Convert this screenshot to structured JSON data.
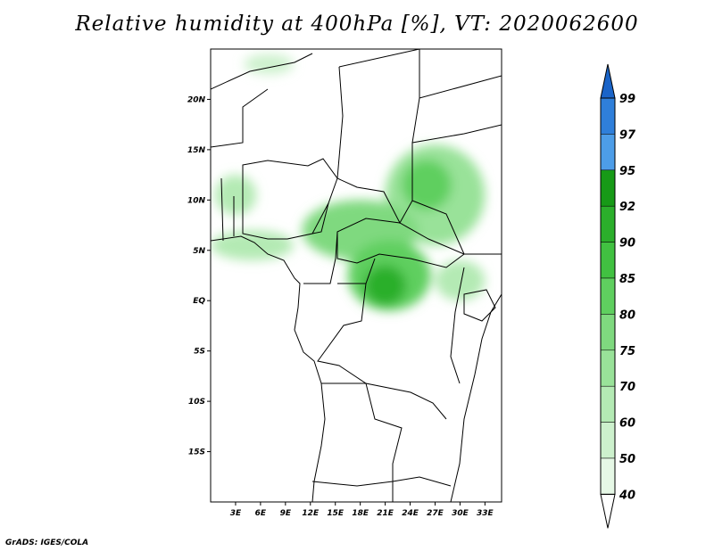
{
  "title": "Relative humidity at 400hPa [%], VT: 2020062600",
  "credit": "GrADS: IGES/COLA",
  "map": {
    "lon_range": [
      0,
      35
    ],
    "lat_range": [
      -20,
      25
    ],
    "y_ticks": [
      {
        "lat": 20,
        "label": "20N"
      },
      {
        "lat": 15,
        "label": "15N"
      },
      {
        "lat": 10,
        "label": "10N"
      },
      {
        "lat": 5,
        "label": "5N"
      },
      {
        "lat": 0,
        "label": "EQ"
      },
      {
        "lat": -5,
        "label": "5S"
      },
      {
        "lat": -10,
        "label": "10S"
      },
      {
        "lat": -15,
        "label": "15S"
      }
    ],
    "x_ticks": [
      {
        "lon": 3,
        "label": "3E"
      },
      {
        "lon": 6,
        "label": "6E"
      },
      {
        "lon": 9,
        "label": "9E"
      },
      {
        "lon": 12,
        "label": "12E"
      },
      {
        "lon": 15,
        "label": "15E"
      },
      {
        "lon": 18,
        "label": "18E"
      },
      {
        "lon": 21,
        "label": "21E"
      },
      {
        "lon": 24,
        "label": "24E"
      },
      {
        "lon": 27,
        "label": "27E"
      },
      {
        "lon": 30,
        "label": "30E"
      },
      {
        "lon": 33,
        "label": "33E"
      }
    ]
  },
  "colorbar": {
    "bins": [
      {
        "from": 0,
        "to": 40,
        "color": "#ffffff"
      },
      {
        "from": 40,
        "to": 50,
        "color": "#e6f8e6"
      },
      {
        "from": 50,
        "to": 60,
        "color": "#cdf1cd"
      },
      {
        "from": 60,
        "to": 70,
        "color": "#b4eab4"
      },
      {
        "from": 70,
        "to": 75,
        "color": "#99e299"
      },
      {
        "from": 75,
        "to": 80,
        "color": "#7fd97f"
      },
      {
        "from": 80,
        "to": 85,
        "color": "#5fcf5f"
      },
      {
        "from": 85,
        "to": 90,
        "color": "#41c141"
      },
      {
        "from": 90,
        "to": 92,
        "color": "#2baf2b"
      },
      {
        "from": 92,
        "to": 95,
        "color": "#179a17"
      },
      {
        "from": 95,
        "to": 97,
        "color": "#4d9de8"
      },
      {
        "from": 97,
        "to": 99,
        "color": "#2f7fda"
      },
      {
        "from": 99,
        "to": 100,
        "color": "#1a64c8"
      }
    ],
    "labels": [
      "40",
      "50",
      "60",
      "70",
      "75",
      "80",
      "85",
      "90",
      "92",
      "95",
      "97",
      "99"
    ]
  },
  "humidity_fields": [
    {
      "name": "sahel-east",
      "level": 70,
      "lat": 10.5,
      "lon": 27,
      "rx": 6,
      "ry": 5
    },
    {
      "name": "sahel-east-core",
      "level": 80,
      "lat": 11.5,
      "lon": 26,
      "rx": 3,
      "ry": 2.5
    },
    {
      "name": "central-africa",
      "level": 75,
      "lat": 7,
      "lon": 18,
      "rx": 7,
      "ry": 3
    },
    {
      "name": "congo-basin",
      "level": 80,
      "lat": 2.5,
      "lon": 21.5,
      "rx": 5,
      "ry": 3.5
    },
    {
      "name": "congo-core",
      "level": 90,
      "lat": 1.5,
      "lon": 21,
      "rx": 2.5,
      "ry": 2
    },
    {
      "name": "gulf-of-guinea",
      "level": 60,
      "lat": 5.5,
      "lon": 5,
      "rx": 5,
      "ry": 1.5
    },
    {
      "name": "nigeria-west",
      "level": 60,
      "lat": 10.5,
      "lon": 3,
      "rx": 2.5,
      "ry": 2
    },
    {
      "name": "east-africa",
      "level": 60,
      "lat": 2,
      "lon": 30,
      "rx": 3,
      "ry": 2
    },
    {
      "name": "north-patch",
      "level": 50,
      "lat": 23.5,
      "lon": 7,
      "rx": 3,
      "ry": 1
    }
  ]
}
